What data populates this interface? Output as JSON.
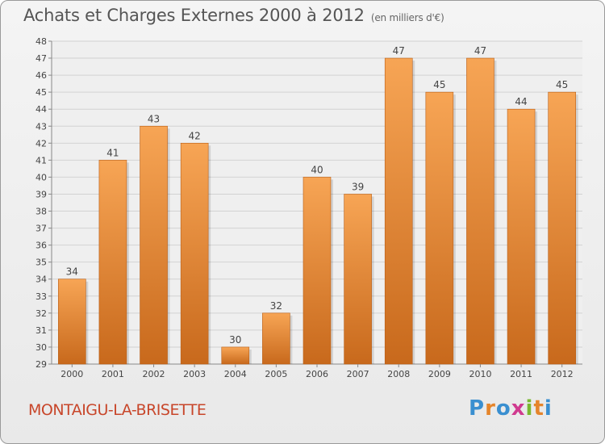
{
  "header": {
    "title": "Achats et Charges Externes 2000 à 2012",
    "unit": "(en milliers d'€)"
  },
  "footer": {
    "city": "MONTAIGU-LA-BRISETTE",
    "logo_text": "Proxiti",
    "logo_colors": [
      "#3a8fd0",
      "#e5852b",
      "#3a8fd0",
      "#d03a8f",
      "#7ab830",
      "#e5852b",
      "#3a8fd0"
    ]
  },
  "colors": {
    "bar_top": "#f7a555",
    "bar_bottom": "#c8691c",
    "title": "#555555",
    "city": "#c8462a"
  },
  "chart_data": {
    "type": "bar",
    "title": "Achats et Charges Externes 2000 à 2012",
    "subtitle": "(en milliers d'€)",
    "categories": [
      "2000",
      "2001",
      "2002",
      "2003",
      "2004",
      "2005",
      "2006",
      "2007",
      "2008",
      "2009",
      "2010",
      "2011",
      "2012"
    ],
    "values": [
      34,
      41,
      43,
      42,
      30,
      32,
      40,
      39,
      47,
      45,
      47,
      44,
      45
    ],
    "ylim": [
      29,
      48
    ],
    "yticks": [
      29,
      30,
      31,
      32,
      33,
      34,
      35,
      36,
      37,
      38,
      39,
      40,
      41,
      42,
      43,
      44,
      45,
      46,
      47,
      48
    ],
    "grid": true,
    "data_labels": true
  }
}
